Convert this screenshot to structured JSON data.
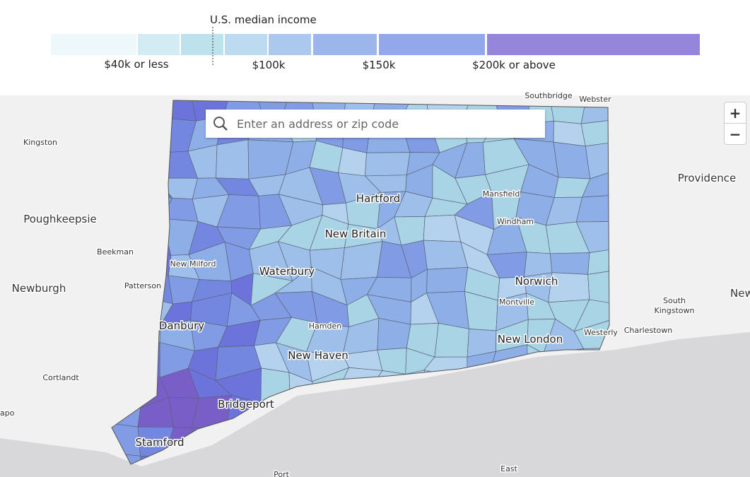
{
  "legend": {
    "title": "U.S. median income",
    "labels": [
      "$40k or less",
      "$100k",
      "$150k",
      "$200k or above"
    ]
  },
  "search": {
    "placeholder": "Enter an address or zip code"
  },
  "zoom": {
    "in": "+",
    "out": "−"
  },
  "places": [
    "Southbridge",
    "Webster",
    "Kingston",
    "Providence",
    "Poughkeepsie",
    "Hartford",
    "Mansfield",
    "Windham",
    "New Britain",
    "Beekman",
    "New Milford",
    "Waterbury",
    "Newburgh",
    "Patterson",
    "Norwich",
    "Newport",
    "South",
    "Kingstown",
    "Montville",
    "Danbury",
    "Hamden",
    "Charlestown",
    "Westerly",
    "New London",
    "New Haven",
    "Cortlandt",
    "Bridgeport",
    "apo",
    "Stamford",
    "Port",
    "East"
  ]
}
